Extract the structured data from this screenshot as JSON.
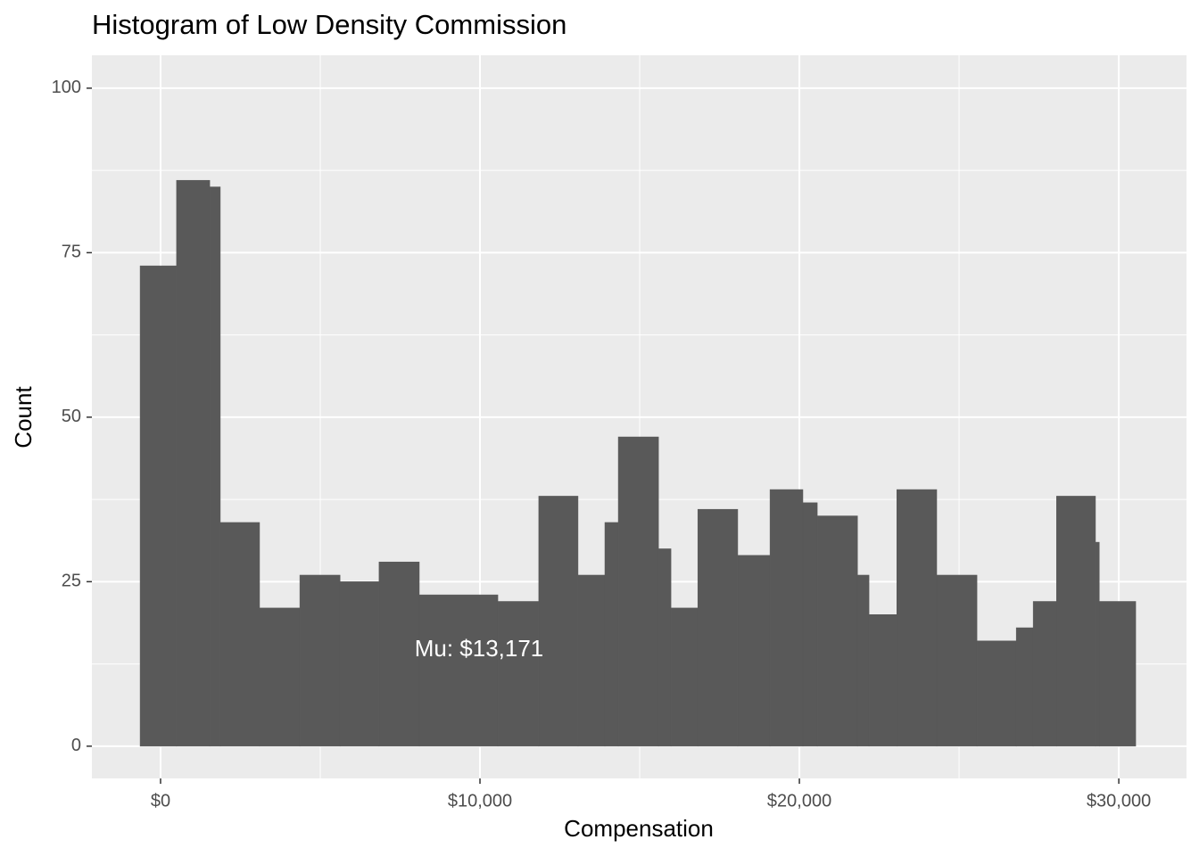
{
  "chart_data": {
    "type": "histogram",
    "title": "Histogram of Low Density Commission",
    "x_label": "Compensation",
    "y_label": "Count",
    "annotation": "Mu: $13,171",
    "bins": [
      -640,
      500,
      1540,
      1870,
      3100,
      4360,
      5620,
      6840,
      8100,
      10560,
      11840,
      13070,
      13910,
      14330,
      15590,
      15980,
      16820,
      18070,
      19080,
      20110,
      20560,
      21820,
      22180,
      23050,
      24300,
      25560,
      26790,
      27320,
      28050,
      29270,
      29390,
      30530
    ],
    "values": [
      73,
      86,
      85,
      34,
      21,
      26,
      25,
      28,
      23,
      22,
      38,
      26,
      34,
      47,
      30,
      21,
      36,
      29,
      39,
      37,
      35,
      26,
      20,
      39,
      26,
      16,
      18,
      22,
      38,
      31,
      22
    ],
    "color": "#595959",
    "xlim": [
      -2150,
      32120
    ],
    "ylim": [
      -4.9,
      105
    ],
    "xticks": [
      {
        "value": 0,
        "label": "$0"
      },
      {
        "value": 10000,
        "label": "$10,000"
      },
      {
        "value": 20000,
        "label": "$20,000"
      },
      {
        "value": 30000,
        "label": "$30,000"
      }
    ],
    "yticks": [
      0,
      25,
      50,
      75,
      100
    ],
    "grid": true
  }
}
